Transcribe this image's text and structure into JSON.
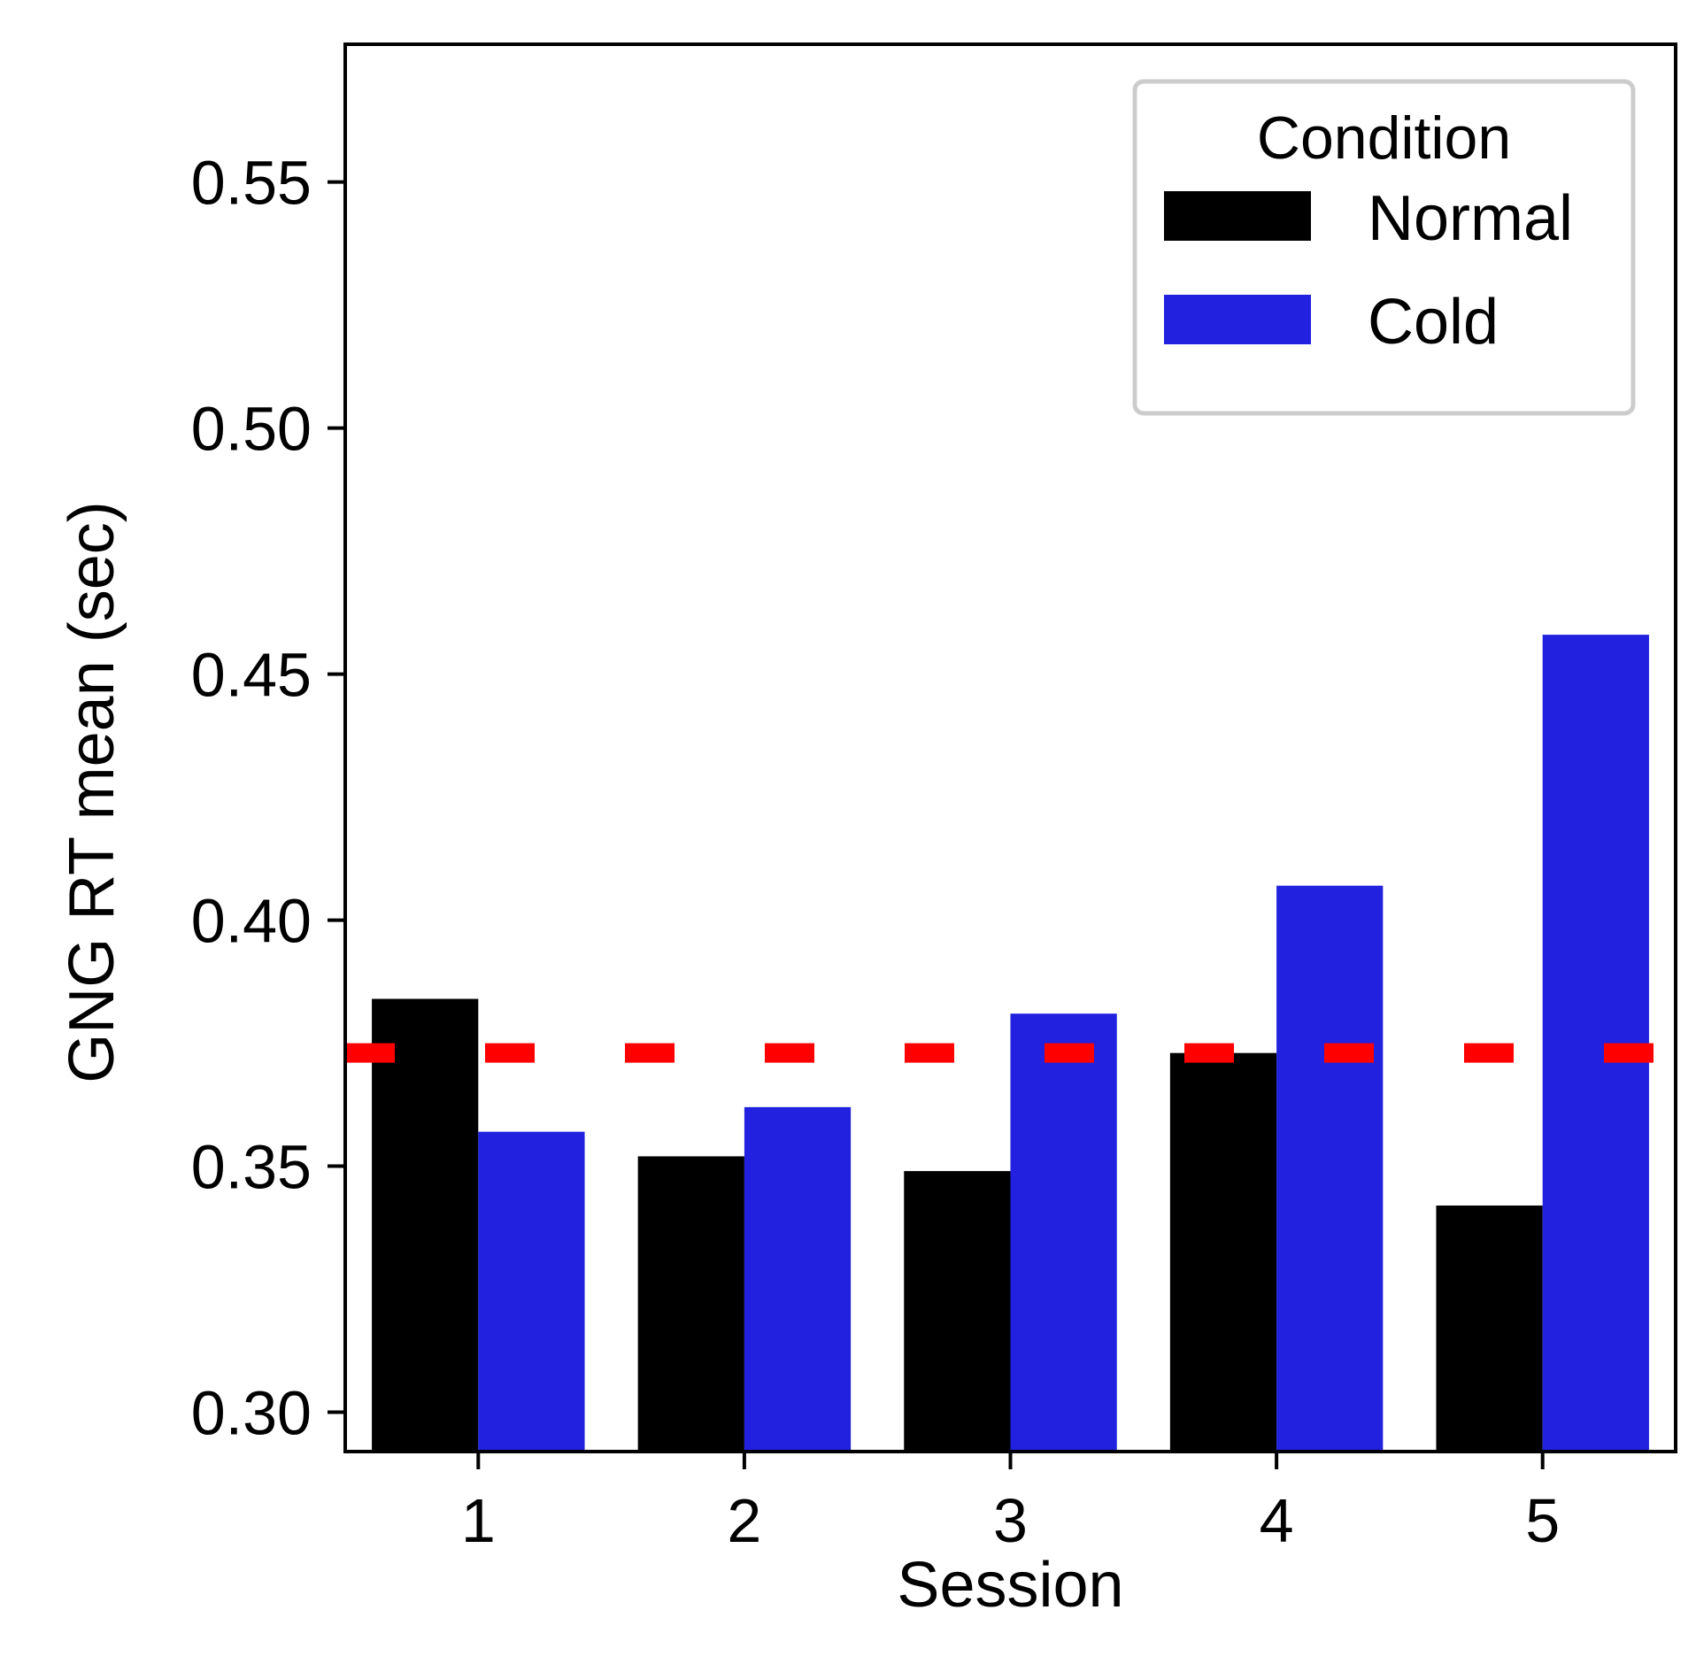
{
  "chart_data": {
    "type": "bar",
    "categories": [
      "1",
      "2",
      "3",
      "4",
      "5"
    ],
    "series": [
      {
        "name": "Normal",
        "color": "#000000",
        "values": [
          0.384,
          0.352,
          0.349,
          0.373,
          0.342
        ]
      },
      {
        "name": "Cold",
        "color": "#2121df",
        "values": [
          0.357,
          0.362,
          0.381,
          0.407,
          0.458
        ]
      }
    ],
    "title": "",
    "xlabel": "Session",
    "ylabel": "GNG RT mean (sec)",
    "ylim": [
      0.292,
      0.578
    ],
    "yticks": [
      0.3,
      0.35,
      0.4,
      0.45,
      0.5,
      0.55
    ],
    "ytick_labels": [
      "0.30",
      "0.35",
      "0.40",
      "0.45",
      "0.50",
      "0.55"
    ],
    "reference_line": {
      "value": 0.373,
      "color": "#ff0000",
      "style": "dashed"
    },
    "legend": {
      "title": "Condition",
      "position": "top-right"
    },
    "grid": false
  }
}
